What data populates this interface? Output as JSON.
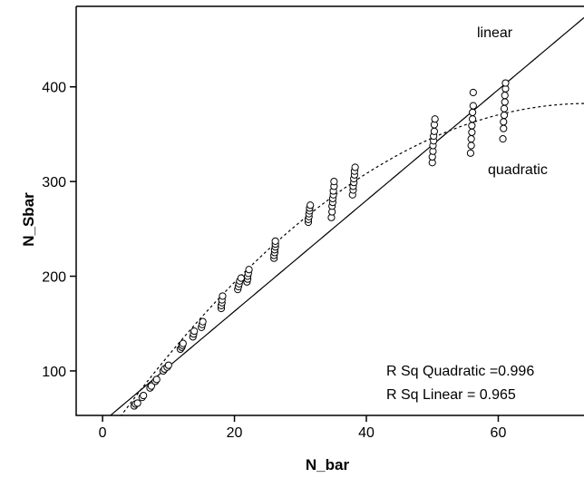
{
  "chart_data": {
    "type": "scatter",
    "title": "",
    "xlabel": "N_bar",
    "ylabel": "N_Sbar",
    "xlim": [
      -4,
      73
    ],
    "ylim": [
      53,
      485
    ],
    "xticks": [
      0,
      20,
      40,
      60
    ],
    "yticks": [
      100,
      200,
      300,
      400
    ],
    "grid": false,
    "legend": "none",
    "marker": "open-circle",
    "points": [
      {
        "x": 4.8,
        "y": 63
      },
      {
        "x": 5.0,
        "y": 65
      },
      {
        "x": 5.3,
        "y": 66
      },
      {
        "x": 6.0,
        "y": 72
      },
      {
        "x": 6.2,
        "y": 74
      },
      {
        "x": 7.2,
        "y": 82
      },
      {
        "x": 7.4,
        "y": 84
      },
      {
        "x": 8.0,
        "y": 89
      },
      {
        "x": 8.2,
        "y": 91
      },
      {
        "x": 9.2,
        "y": 100
      },
      {
        "x": 9.4,
        "y": 102
      },
      {
        "x": 9.8,
        "y": 104
      },
      {
        "x": 10.0,
        "y": 106
      },
      {
        "x": 11.8,
        "y": 123
      },
      {
        "x": 12.0,
        "y": 125
      },
      {
        "x": 12.1,
        "y": 127
      },
      {
        "x": 12.2,
        "y": 129
      },
      {
        "x": 13.7,
        "y": 136
      },
      {
        "x": 13.8,
        "y": 139
      },
      {
        "x": 13.9,
        "y": 142
      },
      {
        "x": 15.0,
        "y": 146
      },
      {
        "x": 15.1,
        "y": 149
      },
      {
        "x": 15.2,
        "y": 152
      },
      {
        "x": 18.0,
        "y": 166
      },
      {
        "x": 18.0,
        "y": 169
      },
      {
        "x": 18.1,
        "y": 172
      },
      {
        "x": 18.1,
        "y": 175
      },
      {
        "x": 18.2,
        "y": 179
      },
      {
        "x": 20.5,
        "y": 186
      },
      {
        "x": 20.6,
        "y": 189
      },
      {
        "x": 20.7,
        "y": 192
      },
      {
        "x": 20.8,
        "y": 195
      },
      {
        "x": 21.0,
        "y": 198
      },
      {
        "x": 21.9,
        "y": 194
      },
      {
        "x": 22.0,
        "y": 197
      },
      {
        "x": 22.0,
        "y": 200
      },
      {
        "x": 22.1,
        "y": 203
      },
      {
        "x": 22.2,
        "y": 207
      },
      {
        "x": 26.0,
        "y": 219
      },
      {
        "x": 26.0,
        "y": 222
      },
      {
        "x": 26.1,
        "y": 225
      },
      {
        "x": 26.1,
        "y": 228
      },
      {
        "x": 26.2,
        "y": 231
      },
      {
        "x": 26.2,
        "y": 234
      },
      {
        "x": 26.2,
        "y": 237
      },
      {
        "x": 31.2,
        "y": 257
      },
      {
        "x": 31.2,
        "y": 260
      },
      {
        "x": 31.3,
        "y": 263
      },
      {
        "x": 31.3,
        "y": 266
      },
      {
        "x": 31.4,
        "y": 269
      },
      {
        "x": 31.4,
        "y": 272
      },
      {
        "x": 31.5,
        "y": 275
      },
      {
        "x": 34.7,
        "y": 262
      },
      {
        "x": 34.8,
        "y": 268
      },
      {
        "x": 34.8,
        "y": 274
      },
      {
        "x": 34.9,
        "y": 278
      },
      {
        "x": 34.9,
        "y": 282
      },
      {
        "x": 35.0,
        "y": 286
      },
      {
        "x": 35.0,
        "y": 290
      },
      {
        "x": 35.1,
        "y": 295
      },
      {
        "x": 35.1,
        "y": 300
      },
      {
        "x": 37.9,
        "y": 286
      },
      {
        "x": 38.0,
        "y": 291
      },
      {
        "x": 38.0,
        "y": 295
      },
      {
        "x": 38.1,
        "y": 299
      },
      {
        "x": 38.1,
        "y": 303
      },
      {
        "x": 38.2,
        "y": 307
      },
      {
        "x": 38.2,
        "y": 311
      },
      {
        "x": 38.3,
        "y": 315
      },
      {
        "x": 50.0,
        "y": 320
      },
      {
        "x": 50.0,
        "y": 326
      },
      {
        "x": 50.1,
        "y": 332
      },
      {
        "x": 50.1,
        "y": 338
      },
      {
        "x": 50.2,
        "y": 343
      },
      {
        "x": 50.2,
        "y": 348
      },
      {
        "x": 50.3,
        "y": 353
      },
      {
        "x": 50.3,
        "y": 360
      },
      {
        "x": 50.4,
        "y": 366
      },
      {
        "x": 55.8,
        "y": 330
      },
      {
        "x": 55.9,
        "y": 338
      },
      {
        "x": 55.9,
        "y": 345
      },
      {
        "x": 56.0,
        "y": 352
      },
      {
        "x": 56.0,
        "y": 359
      },
      {
        "x": 56.1,
        "y": 366
      },
      {
        "x": 56.1,
        "y": 373
      },
      {
        "x": 56.2,
        "y": 380
      },
      {
        "x": 56.2,
        "y": 394
      },
      {
        "x": 60.7,
        "y": 345
      },
      {
        "x": 60.8,
        "y": 356
      },
      {
        "x": 60.8,
        "y": 363
      },
      {
        "x": 60.9,
        "y": 370
      },
      {
        "x": 60.9,
        "y": 377
      },
      {
        "x": 61.0,
        "y": 384
      },
      {
        "x": 61.0,
        "y": 391
      },
      {
        "x": 61.1,
        "y": 398
      },
      {
        "x": 61.1,
        "y": 404
      }
    ],
    "fits": [
      {
        "kind": "linear",
        "label": "linear",
        "intercept": 46,
        "slope": 5.85,
        "style": "solid"
      },
      {
        "kind": "quadratic",
        "label": "quadratic",
        "a": 26,
        "b": 9.7,
        "c": -0.066,
        "style": "dotted"
      }
    ],
    "annotations": [
      "R Sq Quadratic =0.996",
      "R Sq Linear = 0.965"
    ]
  }
}
